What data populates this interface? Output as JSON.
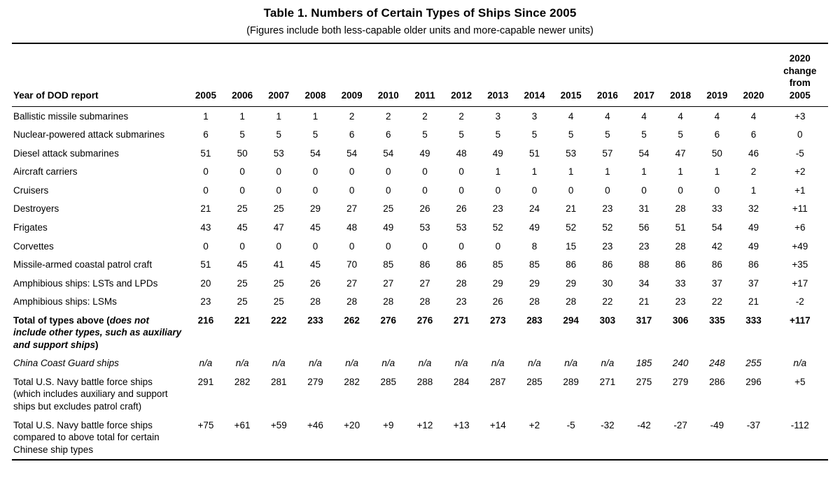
{
  "title": "Table 1. Numbers of Certain Types of Ships Since 2005",
  "subtitle": "(Figures include both less-capable older units and more-capable newer units)",
  "table": {
    "row_header": "Year of DOD report",
    "year_columns": [
      "2005",
      "2006",
      "2007",
      "2008",
      "2009",
      "2010",
      "2011",
      "2012",
      "2013",
      "2014",
      "2015",
      "2016",
      "2017",
      "2018",
      "2019",
      "2020"
    ],
    "change_column_lines": [
      "2020",
      "change",
      "from",
      "2005"
    ],
    "rows": [
      {
        "name": "ballistic-missile-submarines",
        "style": "normal",
        "label_segments": [
          {
            "text": "Ballistic missile submarines",
            "italic": false
          }
        ],
        "values": [
          "1",
          "1",
          "1",
          "1",
          "2",
          "2",
          "2",
          "2",
          "3",
          "3",
          "4",
          "4",
          "4",
          "4",
          "4",
          "4",
          "+3"
        ]
      },
      {
        "name": "nuclear-powered-attack-submarines",
        "style": "normal",
        "label_segments": [
          {
            "text": "Nuclear-powered attack submarines",
            "italic": false
          }
        ],
        "values": [
          "6",
          "5",
          "5",
          "5",
          "6",
          "6",
          "5",
          "5",
          "5",
          "5",
          "5",
          "5",
          "5",
          "5",
          "6",
          "6",
          "0"
        ]
      },
      {
        "name": "diesel-attack-submarines",
        "style": "normal",
        "label_segments": [
          {
            "text": "Diesel attack submarines",
            "italic": false
          }
        ],
        "values": [
          "51",
          "50",
          "53",
          "54",
          "54",
          "54",
          "49",
          "48",
          "49",
          "51",
          "53",
          "57",
          "54",
          "47",
          "50",
          "46",
          "-5"
        ]
      },
      {
        "name": "aircraft-carriers",
        "style": "normal",
        "label_segments": [
          {
            "text": "Aircraft carriers",
            "italic": false
          }
        ],
        "values": [
          "0",
          "0",
          "0",
          "0",
          "0",
          "0",
          "0",
          "0",
          "1",
          "1",
          "1",
          "1",
          "1",
          "1",
          "1",
          "2",
          "+2"
        ]
      },
      {
        "name": "cruisers",
        "style": "normal",
        "label_segments": [
          {
            "text": "Cruisers",
            "italic": false
          }
        ],
        "values": [
          "0",
          "0",
          "0",
          "0",
          "0",
          "0",
          "0",
          "0",
          "0",
          "0",
          "0",
          "0",
          "0",
          "0",
          "0",
          "1",
          "+1"
        ]
      },
      {
        "name": "destroyers",
        "style": "normal",
        "label_segments": [
          {
            "text": "Destroyers",
            "italic": false
          }
        ],
        "values": [
          "21",
          "25",
          "25",
          "29",
          "27",
          "25",
          "26",
          "26",
          "23",
          "24",
          "21",
          "23",
          "31",
          "28",
          "33",
          "32",
          "+11"
        ]
      },
      {
        "name": "frigates",
        "style": "normal",
        "label_segments": [
          {
            "text": "Frigates",
            "italic": false
          }
        ],
        "values": [
          "43",
          "45",
          "47",
          "45",
          "48",
          "49",
          "53",
          "53",
          "52",
          "49",
          "52",
          "52",
          "56",
          "51",
          "54",
          "49",
          "+6"
        ]
      },
      {
        "name": "corvettes",
        "style": "normal",
        "label_segments": [
          {
            "text": "Corvettes",
            "italic": false
          }
        ],
        "values": [
          "0",
          "0",
          "0",
          "0",
          "0",
          "0",
          "0",
          "0",
          "0",
          "8",
          "15",
          "23",
          "23",
          "28",
          "42",
          "49",
          "+49"
        ]
      },
      {
        "name": "missile-armed-coastal-patrol-craft",
        "style": "normal",
        "label_segments": [
          {
            "text": "Missile-armed coastal patrol craft",
            "italic": false
          }
        ],
        "values": [
          "51",
          "45",
          "41",
          "45",
          "70",
          "85",
          "86",
          "86",
          "85",
          "85",
          "86",
          "86",
          "88",
          "86",
          "86",
          "86",
          "+35"
        ]
      },
      {
        "name": "amphibious-ships-lsts-and-lpds",
        "style": "normal",
        "label_segments": [
          {
            "text": "Amphibious ships: LSTs and LPDs",
            "italic": false
          }
        ],
        "values": [
          "20",
          "25",
          "25",
          "26",
          "27",
          "27",
          "27",
          "28",
          "29",
          "29",
          "29",
          "30",
          "34",
          "33",
          "37",
          "37",
          "+17"
        ]
      },
      {
        "name": "amphibious-ships-lsms",
        "style": "normal",
        "label_segments": [
          {
            "text": "Amphibious ships: LSMs",
            "italic": false
          }
        ],
        "values": [
          "23",
          "25",
          "25",
          "28",
          "28",
          "28",
          "28",
          "23",
          "26",
          "28",
          "28",
          "22",
          "21",
          "23",
          "22",
          "21",
          "-2"
        ]
      },
      {
        "name": "total-of-types-above",
        "style": "bold",
        "label_segments": [
          {
            "text": "Total of types above (",
            "italic": false
          },
          {
            "text": "does not include other types, such as auxiliary and support ships",
            "italic": true
          },
          {
            "text": ")",
            "italic": false
          }
        ],
        "values": [
          "216",
          "221",
          "222",
          "233",
          "262",
          "276",
          "276",
          "271",
          "273",
          "283",
          "294",
          "303",
          "317",
          "306",
          "335",
          "333",
          "+117"
        ]
      },
      {
        "name": "china-coast-guard-ships",
        "style": "italic",
        "label_segments": [
          {
            "text": "China Coast Guard ships",
            "italic": false
          }
        ],
        "values": [
          "n/a",
          "n/a",
          "n/a",
          "n/a",
          "n/a",
          "n/a",
          "n/a",
          "n/a",
          "n/a",
          "n/a",
          "n/a",
          "n/a",
          "185",
          "240",
          "248",
          "255",
          "n/a"
        ]
      },
      {
        "name": "total-us-navy-battle-force-ships",
        "style": "normal",
        "label_segments": [
          {
            "text": "Total U.S. Navy battle force ships (which includes auxiliary and support ships but excludes patrol craft)",
            "italic": false
          }
        ],
        "values": [
          "291",
          "282",
          "281",
          "279",
          "282",
          "285",
          "288",
          "284",
          "287",
          "285",
          "289",
          "271",
          "275",
          "279",
          "286",
          "296",
          "+5"
        ]
      },
      {
        "name": "total-us-navy-vs-chinese-types",
        "style": "normal",
        "label_segments": [
          {
            "text": "Total U.S. Navy battle force ships compared to above total for certain Chinese ship types",
            "italic": false
          }
        ],
        "values": [
          "+75",
          "+61",
          "+59",
          "+46",
          "+20",
          "+9",
          "+12",
          "+13",
          "+14",
          "+2",
          "-5",
          "-32",
          "-42",
          "-27",
          "-49",
          "-37",
          "-112"
        ]
      }
    ]
  }
}
